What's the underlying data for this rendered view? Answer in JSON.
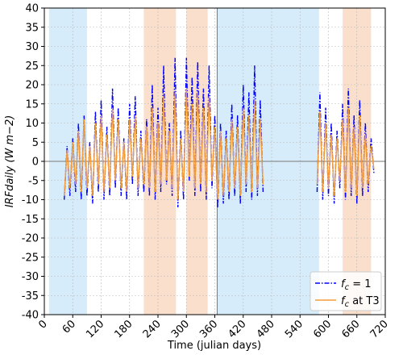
{
  "chart_data": {
    "type": "line",
    "xlabel": "Time (julian days)",
    "ylabel": "IRFdaily (W m−2)",
    "x": [
      42,
      48,
      54,
      60,
      66,
      72,
      78,
      84,
      90,
      96,
      102,
      108,
      114,
      120,
      126,
      132,
      138,
      144,
      150,
      156,
      162,
      168,
      174,
      180,
      186,
      192,
      198,
      204,
      210,
      216,
      222,
      228,
      234,
      240,
      246,
      252,
      258,
      264,
      270,
      276,
      282,
      288,
      294,
      300,
      306,
      312,
      318,
      324,
      330,
      336,
      342,
      348,
      354,
      360,
      366,
      372,
      378,
      384,
      390,
      396,
      402,
      408,
      414,
      420,
      426,
      432,
      438,
      444,
      450,
      456,
      462,
      520,
      576,
      582,
      588,
      594,
      600,
      606,
      612,
      618,
      624,
      630,
      636,
      642,
      648,
      654,
      660,
      666,
      672,
      678,
      684,
      690,
      696
    ],
    "series": [
      {
        "name": "fc = 1",
        "color": "#0000ff",
        "dash": "dashdot",
        "values": [
          -10,
          4,
          -9,
          6,
          -8,
          10,
          -10,
          12,
          -9,
          5,
          -11,
          13,
          -8,
          16,
          -10,
          9,
          -9,
          19,
          -7,
          14,
          -9,
          6,
          -10,
          15,
          -6,
          17,
          -9,
          8,
          -8,
          11,
          -9,
          20,
          -10,
          14,
          -8,
          25,
          -6,
          10,
          -9,
          27,
          -12,
          8,
          -10,
          27,
          -5,
          22,
          -9,
          26,
          -8,
          19,
          -10,
          25,
          -7,
          12,
          -12,
          10,
          -11,
          8,
          -10,
          15,
          -9,
          12,
          -11,
          20,
          -8,
          18,
          -10,
          25,
          -9,
          16,
          -8,
          null,
          -8,
          18,
          -10,
          14,
          -9,
          10,
          -11,
          8,
          -7,
          15,
          -10,
          19,
          -9,
          12,
          -11,
          16,
          -9,
          10,
          -8,
          6,
          -3
        ]
      },
      {
        "name": "fc at T3",
        "color": "#f39c3c",
        "dash": "solid",
        "values": [
          -9,
          3,
          -7,
          5,
          -6,
          8,
          -8,
          11,
          -7,
          4,
          -9,
          10,
          -6,
          12,
          -8,
          7,
          -7,
          14,
          -5,
          11,
          -7,
          5,
          -8,
          11,
          -4,
          12,
          -7,
          6,
          -6,
          9,
          -7,
          14,
          -8,
          10,
          -6,
          17,
          -5,
          8,
          -7,
          18,
          -10,
          6,
          -8,
          19,
          -4,
          15,
          -7,
          18,
          -6,
          14,
          -8,
          17,
          -5,
          9,
          -10,
          8,
          -9,
          6,
          -8,
          11,
          -7,
          9,
          -9,
          14,
          -6,
          12,
          -8,
          16,
          -7,
          11,
          -6,
          null,
          -6,
          13,
          -8,
          10,
          -7,
          7,
          -9,
          6,
          -5,
          11,
          -8,
          14,
          -7,
          9,
          -9,
          12,
          -7,
          7,
          -6,
          4,
          -2
        ]
      }
    ],
    "shaded_regions": [
      {
        "start": 10,
        "end": 90,
        "color": "#d6ecfa"
      },
      {
        "start": 210,
        "end": 278,
        "color": "#f9dfcc"
      },
      {
        "start": 300,
        "end": 345,
        "color": "#f9dfcc"
      },
      {
        "start": 365,
        "end": 580,
        "color": "#d6ecfa"
      },
      {
        "start": 630,
        "end": 690,
        "color": "#f9dfcc"
      }
    ],
    "hlines": [
      0
    ],
    "vlines": [
      365
    ],
    "xlim": [
      0,
      720
    ],
    "xticks": [
      0,
      60,
      120,
      180,
      240,
      300,
      360,
      420,
      480,
      540,
      600,
      660,
      720
    ],
    "ylim": [
      -40,
      40
    ],
    "yticks": [
      -40,
      -35,
      -30,
      -25,
      -20,
      -15,
      -10,
      -5,
      0,
      5,
      10,
      15,
      20,
      25,
      30,
      35,
      40
    ],
    "grid": true,
    "legend": "lower right"
  }
}
